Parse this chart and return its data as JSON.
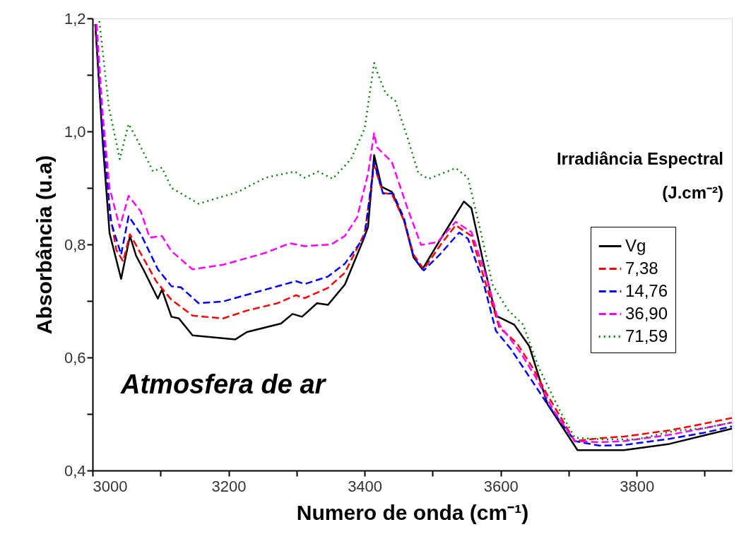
{
  "chart_data": {
    "type": "line",
    "xlabel": "Numero de onda (cm⁻¹)",
    "ylabel": "Absorbância (u.a)",
    "legend_title": "Irradiância Espectral\n(J.cm⁻²)",
    "annotations": [
      "Atmosfera de ar"
    ],
    "xlim": [
      3000,
      3940
    ],
    "ylim": [
      0.4,
      1.2
    ],
    "xticks": [
      3000,
      {
        "value": 3100,
        "label": null
      },
      3200,
      {
        "value": 3300,
        "label": null
      },
      3400,
      {
        "value": 3500,
        "label": null
      },
      3600,
      {
        "value": 3700,
        "label": null
      },
      3800,
      {
        "value": 3900,
        "label": null
      }
    ],
    "yticks": [
      {
        "value": 0.4,
        "label": "0,4"
      },
      {
        "value": 0.5,
        "label": null
      },
      {
        "value": 0.6,
        "label": "0,6"
      },
      {
        "value": 0.7,
        "label": null
      },
      {
        "value": 0.8,
        "label": "0,8"
      },
      {
        "value": 0.9,
        "label": null
      },
      {
        "value": 1.0,
        "label": "1,0"
      },
      {
        "value": 1.1,
        "label": null
      },
      {
        "value": 1.2,
        "label": "1,2"
      }
    ],
    "grid": false,
    "legend": "right",
    "marker": "none",
    "series": [
      {
        "name": "Vg",
        "color": "#000000",
        "line_style": "solid",
        "x": [
          3004,
          3015,
          3025,
          3042,
          3055,
          3064,
          3075,
          3096,
          3102,
          3116,
          3127,
          3147,
          3210,
          3227,
          3277,
          3294,
          3308,
          3330,
          3346,
          3371,
          3397,
          3405,
          3414,
          3425,
          3440,
          3458,
          3472,
          3485,
          3512,
          3546,
          3557,
          3575,
          3593,
          3620,
          3642,
          3669,
          3713,
          3781,
          3848,
          3906,
          3940
        ],
        "values": [
          1.19,
          0.98,
          0.82,
          0.739,
          0.815,
          0.78,
          0.755,
          0.704,
          0.72,
          0.672,
          0.669,
          0.639,
          0.632,
          0.645,
          0.66,
          0.677,
          0.672,
          0.696,
          0.693,
          0.729,
          0.805,
          0.831,
          0.958,
          0.902,
          0.893,
          0.842,
          0.777,
          0.756,
          0.81,
          0.876,
          0.864,
          0.766,
          0.674,
          0.658,
          0.62,
          0.517,
          0.436,
          0.436,
          0.447,
          0.464,
          0.474
        ]
      },
      {
        "name": "7,38",
        "color": "#ff0000",
        "line_style": "dashed",
        "x": [
          3004,
          3015,
          3025,
          3035,
          3045,
          3055,
          3075,
          3094,
          3116,
          3147,
          3192,
          3227,
          3272,
          3299,
          3312,
          3346,
          3371,
          3400,
          3414,
          3427,
          3440,
          3458,
          3472,
          3487,
          3512,
          3534,
          3557,
          3580,
          3598,
          3624,
          3647,
          3669,
          3709,
          3745,
          3781,
          3848,
          3900,
          3940
        ],
        "values": [
          1.19,
          1.0,
          0.86,
          0.79,
          0.77,
          0.818,
          0.775,
          0.734,
          0.702,
          0.674,
          0.669,
          0.683,
          0.696,
          0.71,
          0.705,
          0.723,
          0.75,
          0.82,
          0.94,
          0.891,
          0.889,
          0.842,
          0.782,
          0.756,
          0.8,
          0.834,
          0.815,
          0.723,
          0.653,
          0.625,
          0.582,
          0.533,
          0.452,
          0.457,
          0.46,
          0.471,
          0.483,
          0.493
        ]
      },
      {
        "name": "14,76",
        "color": "#0000ff",
        "line_style": "dashed",
        "x": [
          3005,
          3015,
          3027,
          3042,
          3053,
          3071,
          3096,
          3116,
          3130,
          3156,
          3192,
          3227,
          3272,
          3299,
          3312,
          3346,
          3371,
          3400,
          3414,
          3427,
          3442,
          3458,
          3472,
          3487,
          3512,
          3539,
          3552,
          3575,
          3593,
          3615,
          3642,
          3669,
          3709,
          3745,
          3781,
          3848,
          3900,
          3940
        ],
        "values": [
          1.19,
          1.0,
          0.84,
          0.782,
          0.85,
          0.818,
          0.756,
          0.726,
          0.724,
          0.696,
          0.699,
          0.711,
          0.726,
          0.735,
          0.73,
          0.743,
          0.766,
          0.814,
          0.945,
          0.89,
          0.89,
          0.846,
          0.777,
          0.754,
          0.784,
          0.821,
          0.81,
          0.731,
          0.647,
          0.615,
          0.566,
          0.517,
          0.452,
          0.444,
          0.445,
          0.456,
          0.467,
          0.478
        ]
      },
      {
        "name": "36,90",
        "color": "#ff00ff",
        "line_style": "dashed",
        "x": [
          3006,
          3015,
          3025,
          3040,
          3053,
          3071,
          3084,
          3102,
          3116,
          3147,
          3192,
          3254,
          3290,
          3312,
          3351,
          3371,
          3389,
          3405,
          3414,
          3418,
          3440,
          3463,
          3483,
          3507,
          3534,
          3557,
          3580,
          3598,
          3629,
          3651,
          3678,
          3709,
          3745,
          3781,
          3848,
          3900,
          3940
        ],
        "values": [
          1.19,
          1.03,
          0.9,
          0.83,
          0.886,
          0.858,
          0.812,
          0.815,
          0.788,
          0.756,
          0.764,
          0.785,
          0.802,
          0.797,
          0.8,
          0.815,
          0.848,
          0.925,
          0.997,
          0.972,
          0.946,
          0.864,
          0.799,
          0.804,
          0.84,
          0.822,
          0.739,
          0.658,
          0.609,
          0.566,
          0.506,
          0.452,
          0.45,
          0.452,
          0.463,
          0.475,
          0.485
        ]
      },
      {
        "name": "71,59",
        "color": "#008000",
        "line_style": "dotted",
        "x": [
          3010,
          3024,
          3040,
          3053,
          3064,
          3089,
          3102,
          3116,
          3156,
          3214,
          3254,
          3297,
          3312,
          3332,
          3353,
          3380,
          3400,
          3414,
          3420,
          3431,
          3445,
          3463,
          3479,
          3494,
          3534,
          3552,
          3570,
          3588,
          3610,
          3633,
          3656,
          3687,
          3709,
          3750,
          3800,
          3855,
          3900,
          3940
        ],
        "values": [
          1.195,
          1.043,
          0.951,
          1.013,
          0.989,
          0.929,
          0.936,
          0.9,
          0.872,
          0.893,
          0.918,
          0.929,
          0.918,
          0.929,
          0.916,
          0.951,
          1.005,
          1.121,
          1.1,
          1.067,
          1.054,
          0.989,
          0.926,
          0.916,
          0.935,
          0.918,
          0.826,
          0.729,
          0.685,
          0.658,
          0.582,
          0.506,
          0.458,
          0.455,
          0.455,
          0.47,
          0.475,
          0.485
        ]
      }
    ]
  }
}
